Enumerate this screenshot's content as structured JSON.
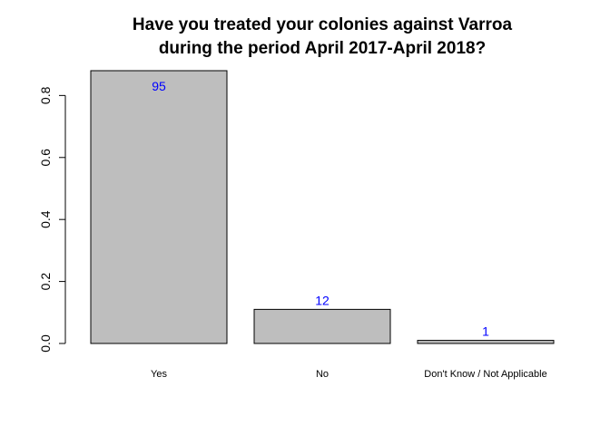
{
  "chart_data": {
    "type": "bar",
    "title_lines": [
      "Have you treated your colonies against Varroa",
      "during the period April 2017-April 2018?"
    ],
    "categories": [
      "Yes",
      "No",
      "Don't Know / Not Applicable"
    ],
    "values": [
      0.88,
      0.11,
      0.01
    ],
    "data_labels": [
      "95",
      "12",
      "1"
    ],
    "yticks": [
      "0.0",
      "0.2",
      "0.4",
      "0.6",
      "0.8"
    ],
    "ylim": [
      0,
      0.88
    ],
    "xlabel": "",
    "ylabel": "",
    "grid": false,
    "legend": "none",
    "colors": {
      "bar_fill": "#bebebe",
      "bar_stroke": "#000000",
      "data_label": "#0000ff",
      "axis": "#000000"
    }
  }
}
